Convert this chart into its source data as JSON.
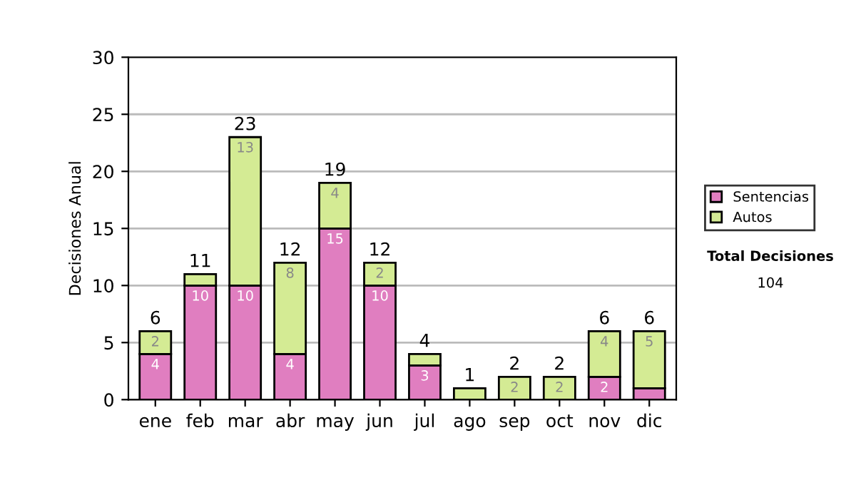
{
  "chart_data": {
    "type": "bar",
    "stacked": true,
    "ylabel": "Decisiones Anual",
    "categories": [
      "ene",
      "feb",
      "mar",
      "abr",
      "may",
      "jun",
      "jul",
      "ago",
      "sep",
      "oct",
      "nov",
      "dic"
    ],
    "series": [
      {
        "name": "Sentencias",
        "color": "#e07ec0",
        "values": [
          4,
          10,
          10,
          4,
          15,
          10,
          3,
          0,
          0,
          0,
          2,
          1
        ],
        "value_labels": [
          "4",
          "10",
          "10",
          "4",
          "15",
          "10",
          "3",
          null,
          null,
          null,
          "2",
          null
        ]
      },
      {
        "name": "Autos",
        "color": "#d4eb94",
        "values": [
          2,
          1,
          13,
          8,
          4,
          2,
          1,
          1,
          2,
          2,
          4,
          5
        ],
        "value_labels": [
          "2",
          null,
          "13",
          "8",
          "4",
          "2",
          null,
          null,
          "2",
          "2",
          "4",
          "5"
        ]
      }
    ],
    "totals": [
      "6",
      "11",
      "23",
      "12",
      "19",
      "12",
      "4",
      "1",
      "2",
      "2",
      "6",
      "6"
    ],
    "ylim": [
      0,
      30
    ],
    "yticks": [
      0,
      5,
      10,
      15,
      20,
      25,
      30
    ],
    "grid": "y",
    "legend": "right",
    "annotations": [
      "Total Decisiones",
      "104"
    ]
  }
}
